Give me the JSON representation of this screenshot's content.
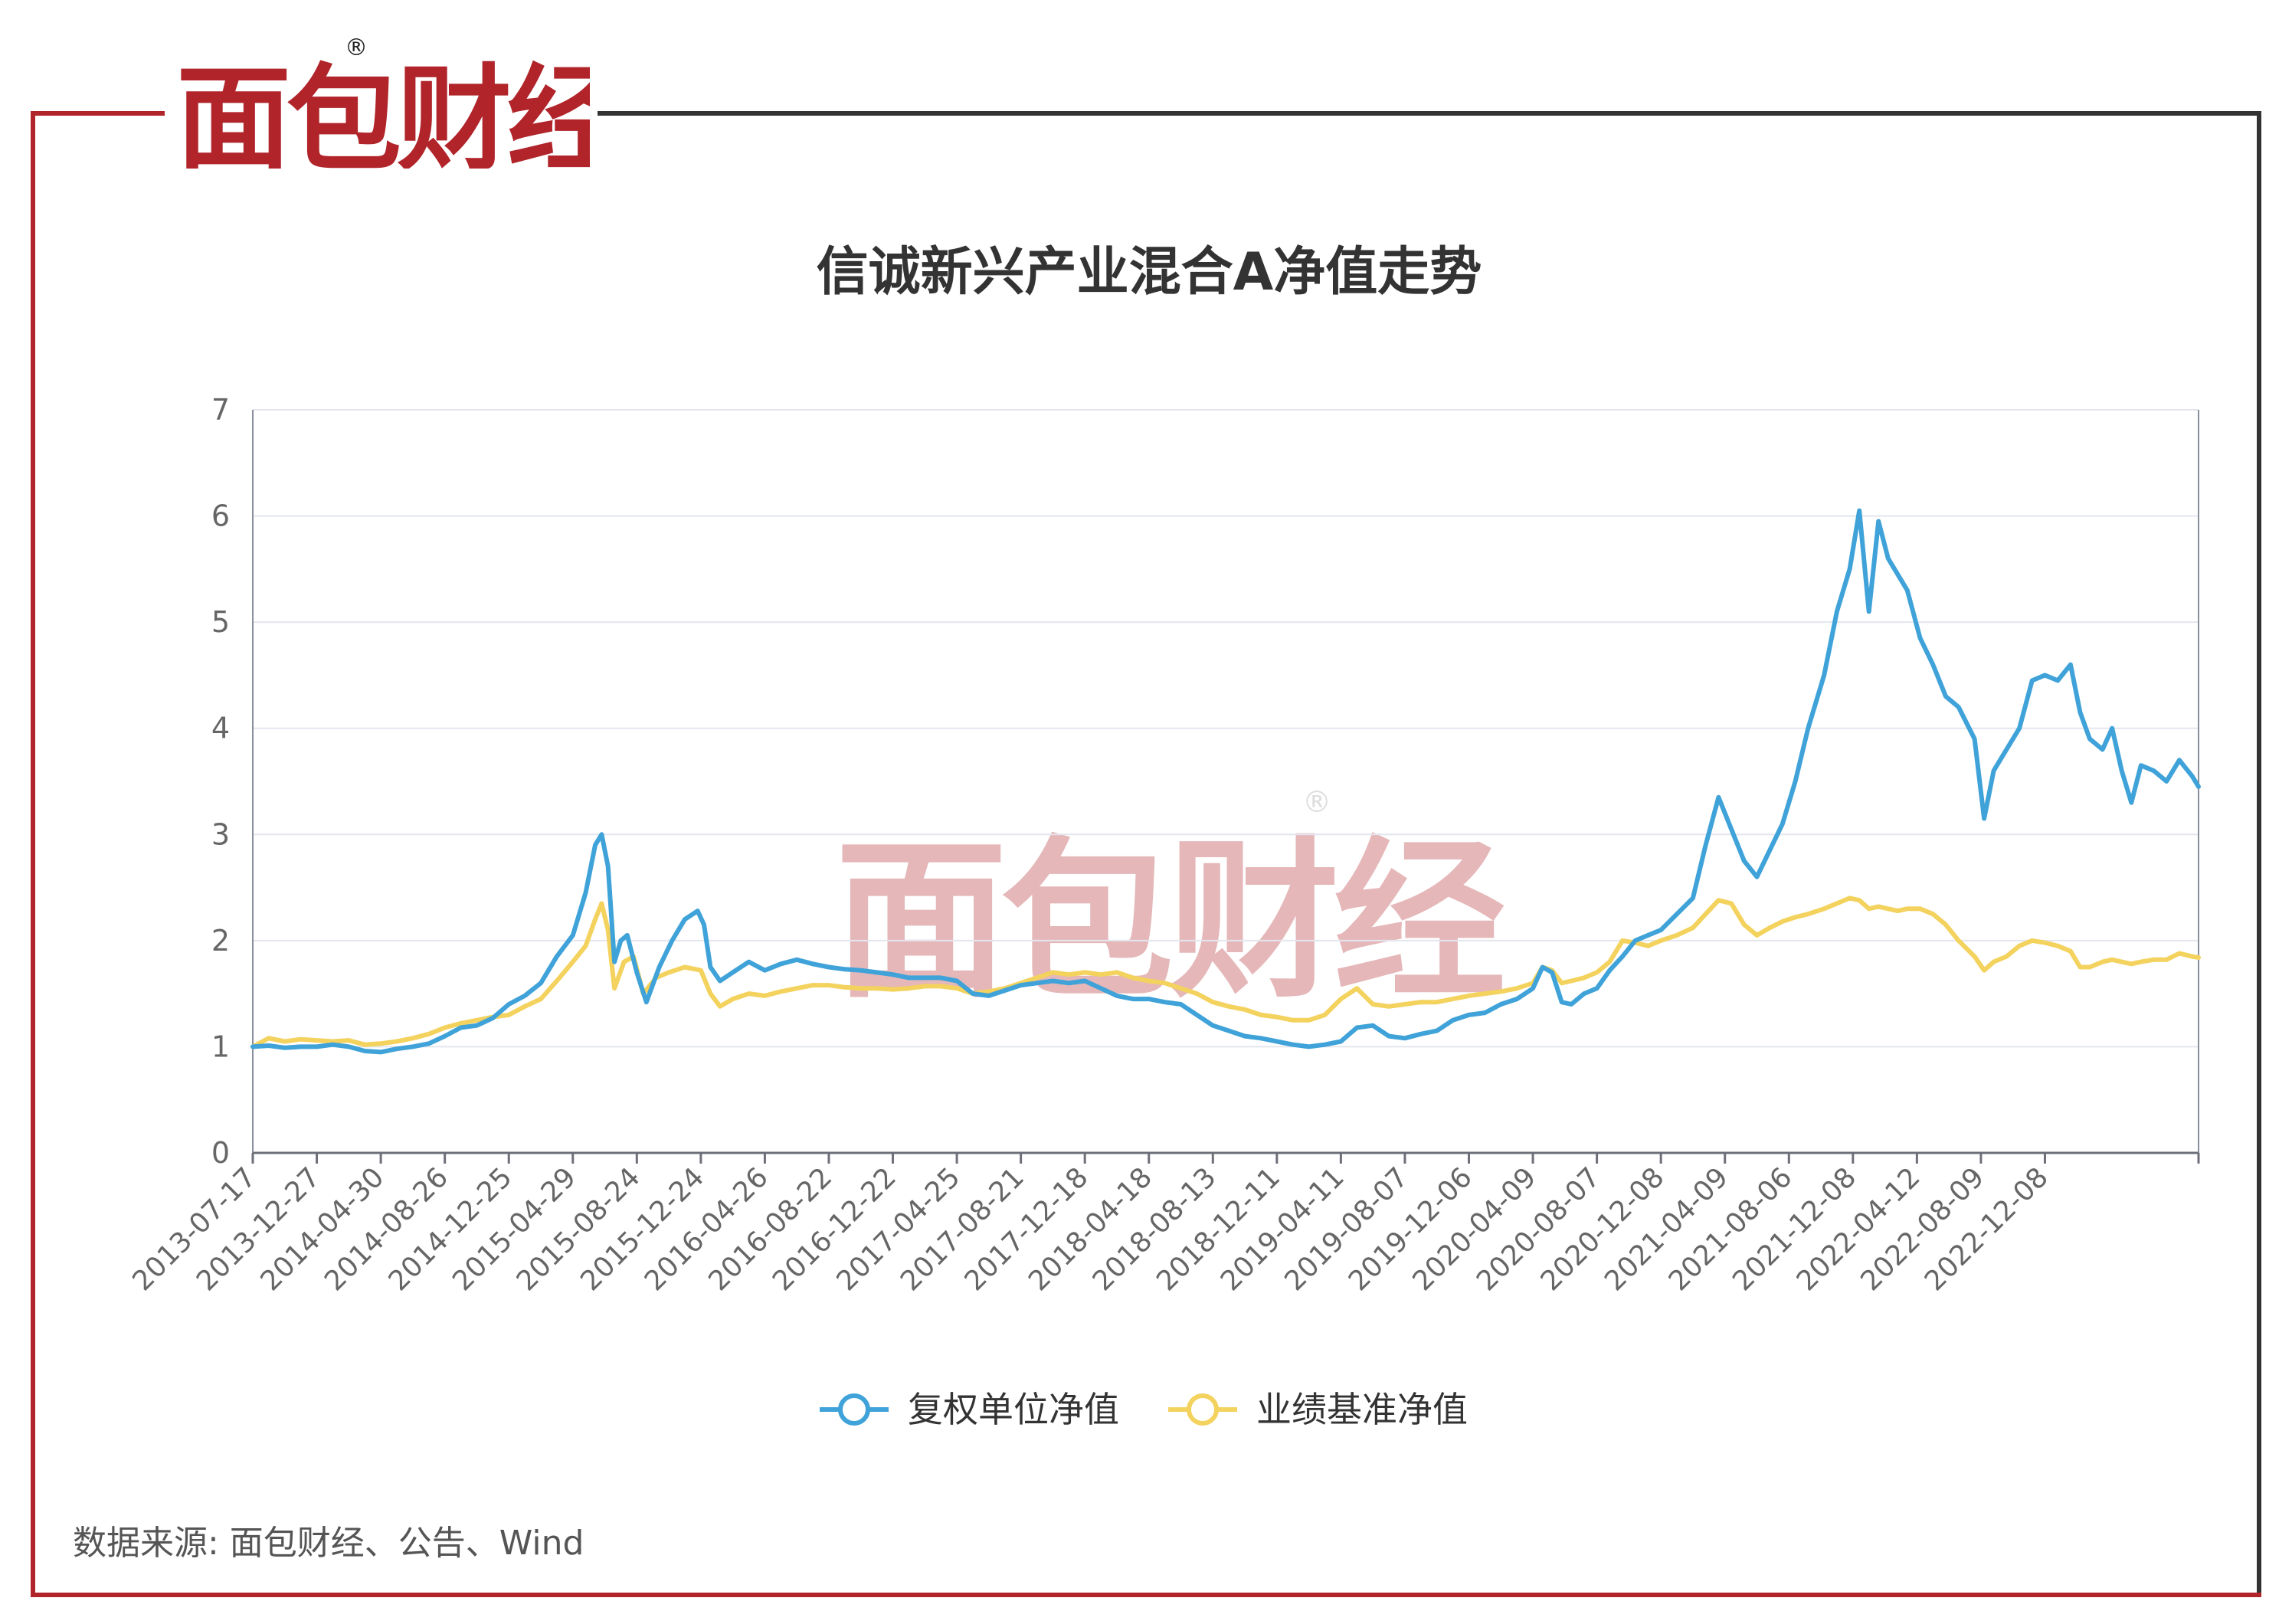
{
  "brand": {
    "logo_text": "面包财经",
    "registered_mark": "®",
    "primary_color": "#b0242a",
    "secondary_color": "#222222",
    "watermark_text": "面包财经"
  },
  "source_note": "数据来源: 面包财经、公告、Wind",
  "chart_data": {
    "type": "line",
    "title": "信诚新兴产业混合A净值走势",
    "xlabel": "",
    "ylabel": "",
    "ylim": [
      0,
      7
    ],
    "yticks": [
      "0",
      "1",
      "2",
      "3",
      "4",
      "5",
      "6",
      "7"
    ],
    "grid": true,
    "legend_position": "bottom-center",
    "categories": [
      "2013-07-17",
      "2013-12-27",
      "2014-04-30",
      "2014-08-26",
      "2014-12-25",
      "2015-04-29",
      "2015-08-24",
      "2015-12-24",
      "2016-04-26",
      "2016-08-22",
      "2016-12-22",
      "2017-04-25",
      "2017-08-21",
      "2017-12-18",
      "2018-04-18",
      "2018-08-13",
      "2018-12-11",
      "2019-04-11",
      "2019-08-07",
      "2019-12-06",
      "2020-04-09",
      "2020-08-07",
      "2020-12-08",
      "2021-04-09",
      "2021-08-06",
      "2021-12-08",
      "2022-04-12",
      "2022-08-09",
      "2022-12-08"
    ],
    "series": [
      {
        "name": "复权单位净值",
        "color": "#3fa2d8",
        "points": [
          [
            0,
            1.0
          ],
          [
            0.25,
            1.01
          ],
          [
            0.5,
            0.99
          ],
          [
            0.75,
            1.0
          ],
          [
            1,
            1.0
          ],
          [
            1.25,
            1.02
          ],
          [
            1.5,
            1.0
          ],
          [
            1.75,
            0.96
          ],
          [
            2,
            0.95
          ],
          [
            2.25,
            0.98
          ],
          [
            2.5,
            1.0
          ],
          [
            2.75,
            1.03
          ],
          [
            3,
            1.1
          ],
          [
            3.25,
            1.18
          ],
          [
            3.5,
            1.2
          ],
          [
            3.75,
            1.27
          ],
          [
            4,
            1.4
          ],
          [
            4.25,
            1.48
          ],
          [
            4.5,
            1.6
          ],
          [
            4.75,
            1.85
          ],
          [
            5,
            2.05
          ],
          [
            5.2,
            2.45
          ],
          [
            5.35,
            2.9
          ],
          [
            5.45,
            3.0
          ],
          [
            5.55,
            2.7
          ],
          [
            5.65,
            1.8
          ],
          [
            5.75,
            2.0
          ],
          [
            5.85,
            2.05
          ],
          [
            6,
            1.7
          ],
          [
            6.15,
            1.42
          ],
          [
            6.35,
            1.75
          ],
          [
            6.55,
            2.0
          ],
          [
            6.75,
            2.2
          ],
          [
            6.95,
            2.28
          ],
          [
            7.05,
            2.15
          ],
          [
            7.15,
            1.75
          ],
          [
            7.3,
            1.62
          ],
          [
            7.5,
            1.7
          ],
          [
            7.75,
            1.8
          ],
          [
            8,
            1.72
          ],
          [
            8.25,
            1.78
          ],
          [
            8.5,
            1.82
          ],
          [
            8.75,
            1.78
          ],
          [
            9,
            1.75
          ],
          [
            9.25,
            1.73
          ],
          [
            9.5,
            1.72
          ],
          [
            9.75,
            1.7
          ],
          [
            10,
            1.68
          ],
          [
            10.25,
            1.65
          ],
          [
            10.5,
            1.65
          ],
          [
            10.75,
            1.65
          ],
          [
            11,
            1.62
          ],
          [
            11.25,
            1.5
          ],
          [
            11.5,
            1.48
          ],
          [
            11.75,
            1.53
          ],
          [
            12,
            1.58
          ],
          [
            12.25,
            1.6
          ],
          [
            12.5,
            1.62
          ],
          [
            12.75,
            1.6
          ],
          [
            13,
            1.62
          ],
          [
            13.25,
            1.55
          ],
          [
            13.5,
            1.48
          ],
          [
            13.75,
            1.45
          ],
          [
            14,
            1.45
          ],
          [
            14.25,
            1.42
          ],
          [
            14.5,
            1.4
          ],
          [
            14.75,
            1.3
          ],
          [
            15,
            1.2
          ],
          [
            15.25,
            1.15
          ],
          [
            15.5,
            1.1
          ],
          [
            15.75,
            1.08
          ],
          [
            16,
            1.05
          ],
          [
            16.25,
            1.02
          ],
          [
            16.5,
            1.0
          ],
          [
            16.75,
            1.02
          ],
          [
            17,
            1.05
          ],
          [
            17.25,
            1.18
          ],
          [
            17.5,
            1.2
          ],
          [
            17.75,
            1.1
          ],
          [
            18,
            1.08
          ],
          [
            18.25,
            1.12
          ],
          [
            18.5,
            1.15
          ],
          [
            18.75,
            1.25
          ],
          [
            19,
            1.3
          ],
          [
            19.25,
            1.32
          ],
          [
            19.5,
            1.4
          ],
          [
            19.75,
            1.45
          ],
          [
            20,
            1.55
          ],
          [
            20.15,
            1.75
          ],
          [
            20.3,
            1.7
          ],
          [
            20.45,
            1.42
          ],
          [
            20.6,
            1.4
          ],
          [
            20.8,
            1.5
          ],
          [
            21,
            1.55
          ],
          [
            21.2,
            1.72
          ],
          [
            21.4,
            1.85
          ],
          [
            21.6,
            2.0
          ],
          [
            21.8,
            2.05
          ],
          [
            22,
            2.1
          ],
          [
            22.25,
            2.25
          ],
          [
            22.5,
            2.4
          ],
          [
            22.7,
            2.9
          ],
          [
            22.9,
            3.35
          ],
          [
            23.1,
            3.05
          ],
          [
            23.3,
            2.75
          ],
          [
            23.5,
            2.6
          ],
          [
            23.7,
            2.85
          ],
          [
            23.9,
            3.1
          ],
          [
            24.1,
            3.5
          ],
          [
            24.3,
            4.0
          ],
          [
            24.55,
            4.5
          ],
          [
            24.75,
            5.1
          ],
          [
            24.95,
            5.5
          ],
          [
            25.1,
            6.05
          ],
          [
            25.25,
            5.1
          ],
          [
            25.4,
            5.95
          ],
          [
            25.55,
            5.6
          ],
          [
            25.7,
            5.45
          ],
          [
            25.85,
            5.3
          ],
          [
            26.05,
            4.85
          ],
          [
            26.25,
            4.6
          ],
          [
            26.45,
            4.3
          ],
          [
            26.65,
            4.2
          ],
          [
            26.9,
            3.9
          ],
          [
            27.05,
            3.15
          ],
          [
            27.2,
            3.6
          ],
          [
            27.4,
            3.8
          ],
          [
            27.6,
            4.0
          ],
          [
            27.8,
            4.45
          ],
          [
            28,
            4.5
          ],
          [
            28.2,
            4.45
          ],
          [
            28.4,
            4.6
          ],
          [
            28.55,
            4.15
          ],
          [
            28.7,
            3.9
          ],
          [
            28.9,
            3.8
          ],
          [
            29.05,
            4.0
          ],
          [
            29.2,
            3.6
          ],
          [
            29.35,
            3.3
          ],
          [
            29.5,
            3.65
          ],
          [
            29.7,
            3.6
          ],
          [
            29.9,
            3.5
          ],
          [
            30.1,
            3.7
          ],
          [
            30.3,
            3.55
          ],
          [
            30.4,
            3.45
          ]
        ]
      },
      {
        "name": "业绩基准净值",
        "color": "#f3d25e",
        "points": [
          [
            0,
            1.0
          ],
          [
            0.25,
            1.08
          ],
          [
            0.5,
            1.05
          ],
          [
            0.75,
            1.07
          ],
          [
            1,
            1.06
          ],
          [
            1.25,
            1.05
          ],
          [
            1.5,
            1.06
          ],
          [
            1.75,
            1.02
          ],
          [
            2,
            1.03
          ],
          [
            2.25,
            1.05
          ],
          [
            2.5,
            1.08
          ],
          [
            2.75,
            1.12
          ],
          [
            3,
            1.18
          ],
          [
            3.25,
            1.22
          ],
          [
            3.5,
            1.25
          ],
          [
            3.75,
            1.28
          ],
          [
            4,
            1.3
          ],
          [
            4.25,
            1.38
          ],
          [
            4.5,
            1.45
          ],
          [
            4.75,
            1.62
          ],
          [
            5,
            1.8
          ],
          [
            5.2,
            1.95
          ],
          [
            5.35,
            2.2
          ],
          [
            5.45,
            2.35
          ],
          [
            5.55,
            2.1
          ],
          [
            5.65,
            1.55
          ],
          [
            5.8,
            1.8
          ],
          [
            5.95,
            1.85
          ],
          [
            6.1,
            1.5
          ],
          [
            6.3,
            1.65
          ],
          [
            6.5,
            1.7
          ],
          [
            6.75,
            1.75
          ],
          [
            7,
            1.72
          ],
          [
            7.15,
            1.5
          ],
          [
            7.3,
            1.38
          ],
          [
            7.5,
            1.45
          ],
          [
            7.75,
            1.5
          ],
          [
            8,
            1.48
          ],
          [
            8.25,
            1.52
          ],
          [
            8.5,
            1.55
          ],
          [
            8.75,
            1.58
          ],
          [
            9,
            1.58
          ],
          [
            9.25,
            1.56
          ],
          [
            9.5,
            1.55
          ],
          [
            9.75,
            1.55
          ],
          [
            10,
            1.54
          ],
          [
            10.25,
            1.55
          ],
          [
            10.5,
            1.57
          ],
          [
            10.75,
            1.57
          ],
          [
            11,
            1.55
          ],
          [
            11.25,
            1.5
          ],
          [
            11.5,
            1.52
          ],
          [
            11.75,
            1.55
          ],
          [
            12,
            1.6
          ],
          [
            12.25,
            1.65
          ],
          [
            12.5,
            1.7
          ],
          [
            12.75,
            1.68
          ],
          [
            13,
            1.7
          ],
          [
            13.25,
            1.68
          ],
          [
            13.5,
            1.7
          ],
          [
            13.75,
            1.65
          ],
          [
            14,
            1.62
          ],
          [
            14.25,
            1.6
          ],
          [
            14.5,
            1.55
          ],
          [
            14.75,
            1.5
          ],
          [
            15,
            1.42
          ],
          [
            15.25,
            1.38
          ],
          [
            15.5,
            1.35
          ],
          [
            15.75,
            1.3
          ],
          [
            16,
            1.28
          ],
          [
            16.25,
            1.25
          ],
          [
            16.5,
            1.25
          ],
          [
            16.75,
            1.3
          ],
          [
            17,
            1.45
          ],
          [
            17.25,
            1.55
          ],
          [
            17.5,
            1.4
          ],
          [
            17.75,
            1.38
          ],
          [
            18,
            1.4
          ],
          [
            18.25,
            1.42
          ],
          [
            18.5,
            1.42
          ],
          [
            18.75,
            1.45
          ],
          [
            19,
            1.48
          ],
          [
            19.25,
            1.5
          ],
          [
            19.5,
            1.52
          ],
          [
            19.75,
            1.55
          ],
          [
            20,
            1.6
          ],
          [
            20.15,
            1.75
          ],
          [
            20.3,
            1.72
          ],
          [
            20.45,
            1.6
          ],
          [
            20.6,
            1.62
          ],
          [
            20.8,
            1.65
          ],
          [
            21,
            1.7
          ],
          [
            21.2,
            1.8
          ],
          [
            21.4,
            2.0
          ],
          [
            21.6,
            1.98
          ],
          [
            21.8,
            1.95
          ],
          [
            22,
            2.0
          ],
          [
            22.25,
            2.05
          ],
          [
            22.5,
            2.12
          ],
          [
            22.7,
            2.25
          ],
          [
            22.9,
            2.38
          ],
          [
            23.1,
            2.35
          ],
          [
            23.3,
            2.15
          ],
          [
            23.5,
            2.05
          ],
          [
            23.7,
            2.12
          ],
          [
            23.9,
            2.18
          ],
          [
            24.1,
            2.22
          ],
          [
            24.3,
            2.25
          ],
          [
            24.55,
            2.3
          ],
          [
            24.75,
            2.35
          ],
          [
            24.95,
            2.4
          ],
          [
            25.1,
            2.38
          ],
          [
            25.25,
            2.3
          ],
          [
            25.4,
            2.32
          ],
          [
            25.55,
            2.3
          ],
          [
            25.7,
            2.28
          ],
          [
            25.85,
            2.3
          ],
          [
            26.05,
            2.3
          ],
          [
            26.25,
            2.25
          ],
          [
            26.45,
            2.15
          ],
          [
            26.65,
            2.0
          ],
          [
            26.9,
            1.85
          ],
          [
            27.05,
            1.72
          ],
          [
            27.2,
            1.8
          ],
          [
            27.4,
            1.85
          ],
          [
            27.6,
            1.95
          ],
          [
            27.8,
            2.0
          ],
          [
            28,
            1.98
          ],
          [
            28.2,
            1.95
          ],
          [
            28.4,
            1.9
          ],
          [
            28.55,
            1.75
          ],
          [
            28.7,
            1.75
          ],
          [
            28.9,
            1.8
          ],
          [
            29.05,
            1.82
          ],
          [
            29.2,
            1.8
          ],
          [
            29.35,
            1.78
          ],
          [
            29.5,
            1.8
          ],
          [
            29.7,
            1.82
          ],
          [
            29.9,
            1.82
          ],
          [
            30.1,
            1.88
          ],
          [
            30.3,
            1.85
          ],
          [
            30.4,
            1.84
          ]
        ]
      }
    ]
  }
}
